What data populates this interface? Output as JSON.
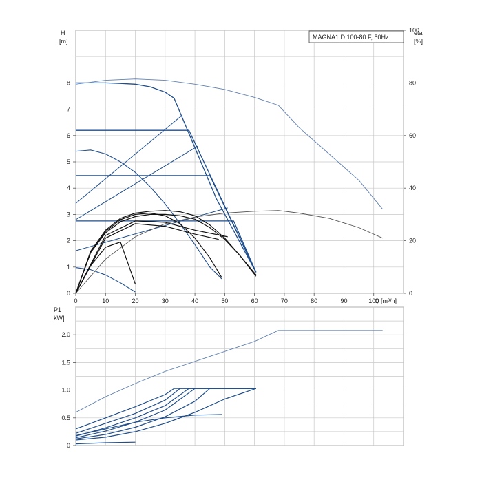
{
  "chart_data": [
    {
      "type": "line",
      "title": "MAGNA1 D 100-80 F, 50Hz",
      "ylabel": "H",
      "yunit": "[m]",
      "y2label": "eta",
      "y2unit": "[%]",
      "xlabel": "Q",
      "xunit": "[m³/h]",
      "xlim": [
        0,
        110
      ],
      "ylim": [
        0,
        10
      ],
      "y2lim": [
        0,
        100
      ],
      "grid": true,
      "x_ticks": [
        0,
        10,
        20,
        30,
        40,
        50,
        60,
        70,
        80,
        90,
        100
      ],
      "x_tick_labels": [
        "0",
        "10",
        "20",
        "30",
        "40",
        "50",
        "60",
        "70",
        "80",
        "90",
        "100"
      ],
      "y_ticks": [
        0,
        1,
        2,
        3,
        4,
        5,
        6,
        7,
        8
      ],
      "y_tick_labels": [
        "0",
        "1",
        "2",
        "3",
        "4",
        "5",
        "6",
        "7",
        "8"
      ],
      "y2_ticks": [
        0,
        20,
        40,
        60,
        80,
        100
      ],
      "y2_tick_labels": [
        "0",
        "20",
        "40",
        "60",
        "80",
        "100"
      ],
      "head_curves": [
        {
          "color": "#1f4e8c",
          "width": 1.3,
          "x": [
            0,
            5,
            10,
            15,
            20,
            25,
            30,
            33,
            47.2,
            60.5
          ],
          "y": [
            8,
            8,
            8,
            7.98,
            7.95,
            7.85,
            7.65,
            7.42,
            3.6,
            0.8
          ]
        },
        {
          "color": "#1f4e8c",
          "width": 1.3,
          "x": [
            0,
            38,
            60.5
          ],
          "y": [
            6.2,
            6.2,
            0.8
          ]
        },
        {
          "color": "#1f4e8c",
          "width": 1.3,
          "x": [
            0,
            45,
            60.5
          ],
          "y": [
            4.48,
            4.48,
            0.8
          ]
        },
        {
          "color": "#1f4e8c",
          "width": 1.3,
          "x": [
            0,
            53,
            60.5
          ],
          "y": [
            2.75,
            2.75,
            0.8
          ]
        },
        {
          "color": "#1f4e8c",
          "width": 1.1,
          "x": [
            0,
            5,
            10,
            15,
            20,
            25,
            30,
            35,
            40,
            45,
            49
          ],
          "y": [
            5.4,
            5.45,
            5.3,
            5.0,
            4.6,
            4.05,
            3.4,
            2.65,
            1.85,
            1.0,
            0.55
          ]
        },
        {
          "color": "#1f4e8c",
          "width": 1.1,
          "x": [
            0,
            5,
            10,
            15,
            20
          ],
          "y": [
            0.98,
            0.9,
            0.7,
            0.4,
            0.05
          ]
        },
        {
          "color": "#1f4e8c",
          "width": 1.0,
          "x": [
            0,
            35.5
          ],
          "y": [
            3.42,
            6.75
          ]
        },
        {
          "color": "#1f4e8c",
          "width": 1.0,
          "x": [
            0,
            41
          ],
          "y": [
            2.8,
            5.6
          ]
        },
        {
          "color": "#1f4e8c",
          "width": 1.0,
          "x": [
            0,
            51
          ],
          "y": [
            1.62,
            3.25
          ]
        },
        {
          "color": "#6080b0",
          "width": 0.9,
          "x": [
            0,
            10,
            20,
            30,
            40,
            50,
            60,
            68,
            75,
            85,
            95,
            103
          ],
          "y": [
            7.95,
            8.1,
            8.15,
            8.1,
            7.95,
            7.75,
            7.45,
            7.15,
            6.3,
            5.3,
            4.3,
            3.2
          ]
        },
        {
          "color": "#555555",
          "width": 0.9,
          "x": [
            0,
            10,
            20,
            30,
            40,
            50,
            60,
            68,
            75,
            85,
            95,
            103
          ],
          "y": [
            0,
            1.3,
            2.15,
            2.65,
            2.9,
            3.05,
            3.12,
            3.15,
            3.05,
            2.85,
            2.5,
            2.1
          ]
        },
        {
          "color": "#111111",
          "width": 1.2,
          "x": [
            0,
            5,
            10,
            15,
            20,
            25,
            30,
            35,
            40,
            45,
            50,
            55,
            60.5
          ],
          "y": [
            0,
            1.6,
            2.4,
            2.85,
            3.05,
            3.12,
            3.15,
            3.1,
            2.95,
            2.6,
            2.1,
            1.45,
            0.65
          ]
        },
        {
          "color": "#111111",
          "width": 1.2,
          "x": [
            0,
            5,
            10,
            15,
            20,
            25,
            30,
            35,
            40,
            45,
            50,
            55,
            60.5
          ],
          "y": [
            0,
            1.55,
            2.3,
            2.72,
            2.92,
            3.0,
            3.0,
            2.95,
            2.82,
            2.5,
            2.05,
            1.45,
            0.7
          ]
        },
        {
          "color": "#111111",
          "width": 1.2,
          "x": [
            0,
            5,
            10,
            15,
            20,
            25,
            30,
            35,
            40,
            45,
            49
          ],
          "y": [
            0,
            1.55,
            2.35,
            2.8,
            3.0,
            3.05,
            2.95,
            2.65,
            2.1,
            1.35,
            0.6
          ]
        },
        {
          "color": "#111111",
          "width": 1.2,
          "x": [
            0,
            10,
            20,
            30,
            40,
            48
          ],
          "y": [
            0,
            2.1,
            2.65,
            2.55,
            2.25,
            2.05
          ]
        },
        {
          "color": "#111111",
          "width": 1.2,
          "x": [
            0,
            10,
            20,
            30,
            40,
            51
          ],
          "y": [
            0,
            2.2,
            2.75,
            2.7,
            2.4,
            2.15
          ]
        },
        {
          "color": "#111111",
          "width": 1.2,
          "x": [
            0,
            5,
            10,
            15,
            20
          ],
          "y": [
            0,
            1.05,
            1.75,
            1.95,
            0.35
          ]
        }
      ],
      "legend": "top-right"
    },
    {
      "type": "line",
      "ylabel": "P1",
      "yunit": "kW]",
      "xlim": [
        0,
        110
      ],
      "ylim": [
        0,
        2.5
      ],
      "grid": true,
      "y_ticks": [
        0,
        0.5,
        1.0,
        1.5,
        2.0
      ],
      "y_tick_labels": [
        "0",
        "0.5",
        "1.0",
        "1.5",
        "2.0"
      ],
      "power_curves": [
        {
          "color": "#6080b0",
          "width": 0.9,
          "x": [
            0,
            10,
            20,
            30,
            40,
            50,
            60,
            68,
            80,
            90,
            103
          ],
          "y": [
            0.6,
            0.88,
            1.12,
            1.34,
            1.52,
            1.7,
            1.88,
            2.08,
            2.08,
            2.08,
            2.08
          ]
        },
        {
          "color": "#1f4e8c",
          "width": 1.2,
          "x": [
            0,
            10,
            20,
            30,
            33,
            60.5
          ],
          "y": [
            0.3,
            0.5,
            0.7,
            0.92,
            1.03,
            1.03
          ]
        },
        {
          "color": "#1f4e8c",
          "width": 1.2,
          "x": [
            0,
            10,
            20,
            30,
            35,
            60.5
          ],
          "y": [
            0.22,
            0.4,
            0.58,
            0.82,
            1.03,
            1.03
          ]
        },
        {
          "color": "#1f4e8c",
          "width": 1.2,
          "x": [
            0,
            10,
            20,
            30,
            38,
            60.5
          ],
          "y": [
            0.17,
            0.32,
            0.5,
            0.72,
            1.03,
            1.03
          ]
        },
        {
          "color": "#1f4e8c",
          "width": 1.2,
          "x": [
            0,
            10,
            20,
            30,
            40,
            60.5
          ],
          "y": [
            0.14,
            0.26,
            0.42,
            0.64,
            1.03,
            1.03
          ]
        },
        {
          "color": "#1f4e8c",
          "width": 1.2,
          "x": [
            0,
            10,
            20,
            30,
            40,
            45,
            60.5
          ],
          "y": [
            0.12,
            0.2,
            0.33,
            0.52,
            0.8,
            1.03,
            1.03
          ]
        },
        {
          "color": "#1f4e8c",
          "width": 1.2,
          "x": [
            0,
            10,
            20,
            30,
            40,
            50,
            60.5
          ],
          "y": [
            0.1,
            0.15,
            0.25,
            0.4,
            0.6,
            0.84,
            1.03
          ]
        },
        {
          "color": "#1f4e8c",
          "width": 1.2,
          "x": [
            0,
            10,
            20,
            30,
            40,
            49
          ],
          "y": [
            0.18,
            0.3,
            0.42,
            0.5,
            0.55,
            0.56
          ]
        },
        {
          "color": "#1f4e8c",
          "width": 1.2,
          "x": [
            0,
            10,
            20
          ],
          "y": [
            0.03,
            0.05,
            0.06
          ]
        }
      ]
    }
  ]
}
